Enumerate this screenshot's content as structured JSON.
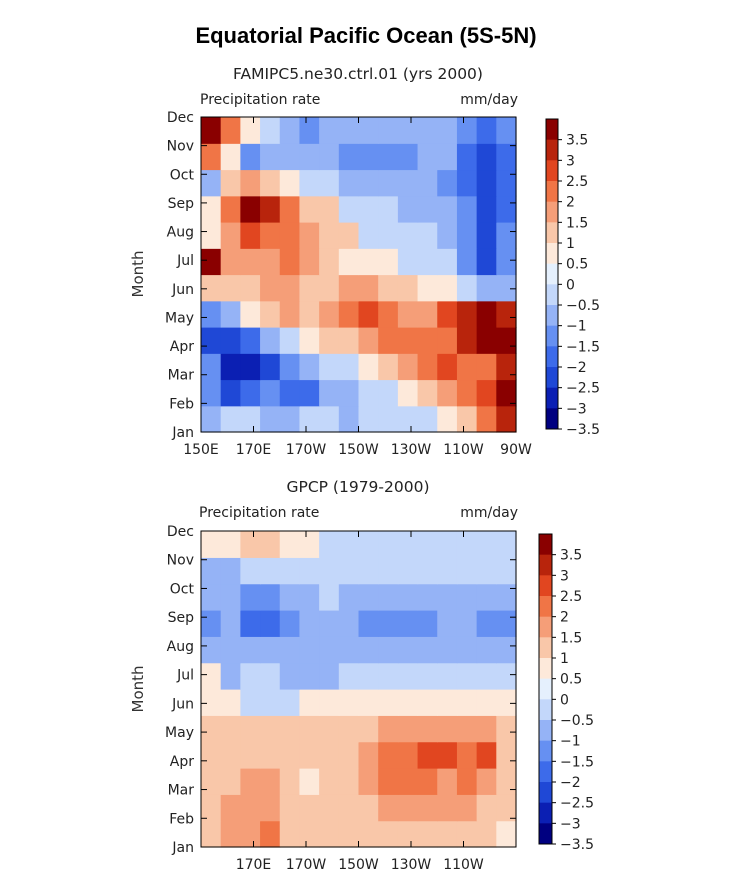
{
  "title": "Equatorial Pacific Ocean (5S-5N)",
  "colors": {
    "scale": [
      "#000080",
      "#0b1fb3",
      "#1f48d6",
      "#3d6bea",
      "#6690f2",
      "#95b3f6",
      "#c3d7fa",
      "#e5f0fd",
      "#fde9da",
      "#f9c7a9",
      "#f59e78",
      "#f07546",
      "#e14620",
      "#b8240c",
      "#8a0000"
    ]
  },
  "chart_data": [
    {
      "type": "heatmap",
      "title": "FAMIPC5.ne30.ctrl.01 (yrs 2000)",
      "left_label": "Precipitation rate",
      "right_label": "mm/day",
      "ylabel": "Month",
      "y_ticks": [
        "Jan",
        "Feb",
        "Mar",
        "Apr",
        "May",
        "Jun",
        "Jul",
        "Aug",
        "Sep",
        "Oct",
        "Nov",
        "Dec"
      ],
      "x_ticks": [
        "150E",
        "170E",
        "170W",
        "150W",
        "130W",
        "110W",
        "90W"
      ],
      "xlim": [
        150,
        270
      ],
      "colorbar_levels": [
        "3.5",
        "3",
        "2.5",
        "2",
        "1.5",
        "1",
        "0.5",
        "0",
        "-0.5",
        "-1",
        "-1.5",
        "-2",
        "-2.5",
        "-3",
        "-3.5"
      ],
      "values": [
        [
          -0.9,
          -0.4,
          -0.4,
          -0.9,
          -1.1,
          -0.7,
          -0.7,
          -0.9,
          -0.4,
          -0.4,
          -0.4,
          -0.4,
          0.3,
          1.0,
          2.0,
          3.0
        ],
        [
          -1.4,
          -2.4,
          -1.9,
          -1.4,
          -1.9,
          -1.9,
          -0.9,
          -0.9,
          -0.4,
          -0.4,
          0.3,
          0.8,
          1.5,
          2.0,
          2.5,
          3.5
        ],
        [
          -1.4,
          -2.9,
          -2.9,
          -2.4,
          -1.4,
          -0.9,
          -0.4,
          -0.4,
          0.3,
          0.8,
          1.3,
          1.8,
          2.3,
          2.0,
          2.0,
          3.0
        ],
        [
          -2.4,
          -2.4,
          -1.9,
          -0.9,
          -0.4,
          0.3,
          0.8,
          1.0,
          1.5,
          2.0,
          2.0,
          2.0,
          2.0,
          3.0,
          3.5,
          3.5
        ],
        [
          -1.4,
          -0.9,
          0.3,
          1.0,
          1.5,
          1.0,
          1.5,
          2.0,
          2.5,
          2.0,
          1.5,
          1.5,
          2.5,
          3.0,
          3.5,
          3.0
        ],
        [
          1.0,
          1.0,
          1.0,
          1.5,
          1.5,
          1.0,
          1.0,
          1.5,
          1.5,
          1.0,
          0.8,
          0.3,
          0.3,
          -0.4,
          -0.9,
          -0.9
        ],
        [
          3.5,
          1.5,
          1.5,
          1.5,
          2.0,
          1.5,
          1.0,
          0.5,
          0.3,
          0.3,
          -0.4,
          -0.4,
          -0.4,
          -1.4,
          -2.4,
          -1.4
        ],
        [
          0.3,
          1.5,
          2.5,
          2.0,
          2.0,
          1.5,
          1.0,
          0.8,
          -0.4,
          -0.4,
          -0.4,
          -0.4,
          -0.9,
          -1.4,
          -2.4,
          -1.4
        ],
        [
          0.3,
          2.0,
          3.5,
          3.0,
          2.0,
          1.0,
          0.8,
          -0.4,
          -0.4,
          -0.4,
          -0.9,
          -0.9,
          -0.9,
          -1.4,
          -2.4,
          -1.9
        ],
        [
          -0.9,
          0.8,
          1.5,
          1.0,
          0.3,
          -0.4,
          -0.4,
          -0.9,
          -0.9,
          -0.9,
          -0.9,
          -0.9,
          -1.4,
          -1.9,
          -2.4,
          -1.9
        ],
        [
          2.0,
          0.3,
          -1.4,
          -0.9,
          -0.9,
          -0.9,
          -0.9,
          -1.4,
          -1.4,
          -1.4,
          -1.4,
          -0.9,
          -0.9,
          -1.9,
          -2.4,
          -1.9
        ],
        [
          3.5,
          2.0,
          0.3,
          -0.4,
          -0.9,
          -1.4,
          -0.9,
          -0.9,
          -0.9,
          -0.9,
          -0.9,
          -0.9,
          -0.9,
          -1.4,
          -1.9,
          -1.4
        ]
      ]
    },
    {
      "type": "heatmap",
      "title": "GPCP (1979-2000)",
      "left_label": "Precipitation rate",
      "right_label": "mm/day",
      "ylabel": "Month",
      "y_ticks": [
        "Jan",
        "Feb",
        "Mar",
        "Apr",
        "May",
        "Jun",
        "Jul",
        "Aug",
        "Sep",
        "Oct",
        "Nov",
        "Dec"
      ],
      "x_ticks": [
        "170E",
        "170W",
        "150W",
        "130W",
        "110W"
      ],
      "xlim": [
        150,
        270
      ],
      "colorbar_levels": [
        "3.5",
        "3",
        "2.5",
        "2",
        "1.5",
        "1",
        "0.5",
        "0",
        "-0.5",
        "-1",
        "-1.5",
        "-2",
        "-2.5",
        "-3",
        "-3.5"
      ],
      "values": [
        [
          1.0,
          1.5,
          1.5,
          2.0,
          1.0,
          0.8,
          0.8,
          1.0,
          1.0,
          1.0,
          1.0,
          1.0,
          1.0,
          1.0,
          0.8,
          0.3
        ],
        [
          1.0,
          1.5,
          1.5,
          1.5,
          1.0,
          0.8,
          0.8,
          1.0,
          1.0,
          1.5,
          1.5,
          1.5,
          1.5,
          1.5,
          1.0,
          0.8
        ],
        [
          1.0,
          1.0,
          1.5,
          1.5,
          1.0,
          0.3,
          0.8,
          1.0,
          1.5,
          2.0,
          2.0,
          2.0,
          1.5,
          2.0,
          1.5,
          1.0
        ],
        [
          0.8,
          1.0,
          1.0,
          1.0,
          0.8,
          0.8,
          1.0,
          1.0,
          1.5,
          2.0,
          2.0,
          2.5,
          2.5,
          2.0,
          2.5,
          1.0
        ],
        [
          0.8,
          0.8,
          0.8,
          0.8,
          1.0,
          1.0,
          1.0,
          1.0,
          1.0,
          1.5,
          1.5,
          1.5,
          1.5,
          1.5,
          1.5,
          0.8
        ],
        [
          0.3,
          0.3,
          -0.4,
          -0.4,
          -0.4,
          0.3,
          0.3,
          0.3,
          0.3,
          0.3,
          0.3,
          0.3,
          0.3,
          0.3,
          0.3,
          0.3
        ],
        [
          0.3,
          -0.9,
          -0.4,
          -0.4,
          -0.9,
          -0.9,
          -0.9,
          -0.4,
          -0.4,
          -0.4,
          -0.4,
          -0.4,
          -0.4,
          -0.4,
          -0.4,
          -0.4
        ],
        [
          -0.9,
          -0.9,
          -0.9,
          -0.9,
          -0.9,
          -0.9,
          -0.9,
          -0.9,
          -0.9,
          -0.9,
          -0.9,
          -0.9,
          -0.9,
          -0.9,
          -0.9,
          -0.9
        ],
        [
          -1.4,
          -0.9,
          -1.9,
          -1.9,
          -1.4,
          -0.9,
          -0.9,
          -0.9,
          -1.4,
          -1.4,
          -1.4,
          -1.4,
          -0.9,
          -0.9,
          -1.4,
          -1.4
        ],
        [
          -0.9,
          -0.9,
          -1.4,
          -1.4,
          -0.9,
          -0.9,
          -0.4,
          -0.9,
          -0.9,
          -0.9,
          -0.9,
          -0.9,
          -0.9,
          -0.9,
          -0.9,
          -0.9
        ],
        [
          -0.9,
          -0.9,
          -0.4,
          -0.4,
          -0.4,
          -0.4,
          -0.4,
          -0.4,
          -0.4,
          -0.4,
          -0.4,
          -0.4,
          -0.4,
          -0.4,
          -0.4,
          -0.4
        ],
        [
          0.3,
          0.3,
          1.0,
          1.0,
          0.3,
          0.3,
          -0.4,
          -0.4,
          -0.4,
          -0.4,
          -0.4,
          -0.4,
          -0.4,
          -0.4,
          -0.4,
          -0.4
        ]
      ]
    }
  ]
}
